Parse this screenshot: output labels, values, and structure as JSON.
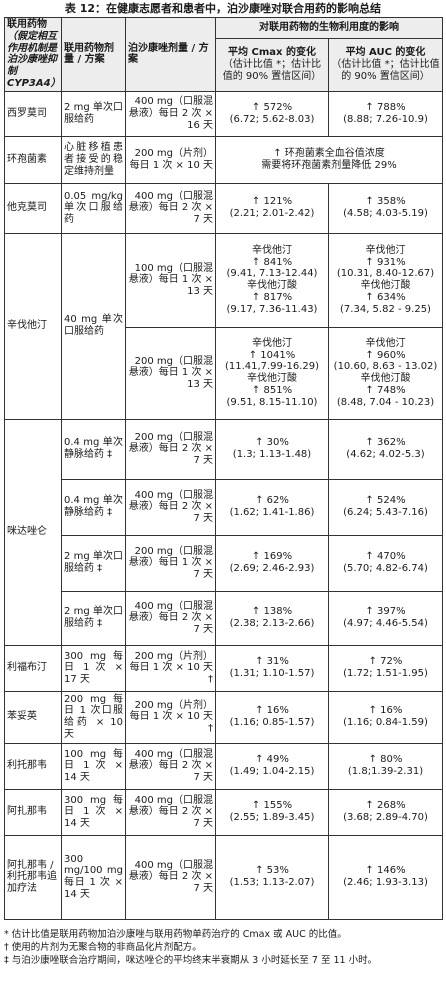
{
  "title": "表 12：在健康志愿者和患者中，泊沙康唑对联合用药的影响总结",
  "headers": {
    "drug_main": "联用药物",
    "drug_sub": "（假定相互作用机制是泊沙康唑抑制CYP3A4）",
    "coadmin_dose": "联用药物剂量 / 方案",
    "posa_dose": "泊沙康唑剂量 / 方案",
    "effect_span": "对联用药物的生物利用度的影响",
    "cmax_title": "平均 Cmax 的变化",
    "cmax_note": "（估计比值 *；估计比值的 90% 置信区间）",
    "auc_title": "平均 AUC 的变化",
    "auc_note": "（估计比值 *；估计比值的 90% 置信区间）"
  },
  "rows": {
    "cimetidine": {
      "drug": "西罗莫司",
      "dose": "2 mg 单次口服给药",
      "posa": "400 mg（口服混悬液）每日 2 次 × 16 天",
      "cmax_change": "↑ 572%",
      "cmax_ci": "(6.72; 5.62-8.03)",
      "auc_change": "↑ 788%",
      "auc_ci": "(8.88; 7.26-10.9)"
    },
    "cyclosporine": {
      "drug": "环孢菌素",
      "dose": "心脏移植患者接受的稳定维持剂量",
      "posa": "200 mg（片剂）每日 1 次 × 10 天",
      "merged_line1": "↑ 环孢菌素全血谷值浓度",
      "merged_line2": "需要将环孢菌素剂量降低 29%"
    },
    "tacrolimus": {
      "drug": "他克莫司",
      "dose": "0.05 mg/kg 单次口服给药",
      "posa": "400 mg（口服混悬液）每日 2 次 × 7 天",
      "cmax_change": "↑ 121%",
      "cmax_ci": "(2.21; 2.01-2.42)",
      "auc_change": "↑ 358%",
      "auc_ci": "(4.58; 4.03-5.19)"
    },
    "simvastatin": {
      "drug": "辛伐他汀",
      "dose": "40 mg 单次口服给药",
      "a": {
        "posa": "100 mg（口服混悬液）每日 1 次 × 13 天",
        "cmax_sim_label": "辛伐他汀",
        "cmax_sim_change": "↑ 841%",
        "cmax_sim_ci": "(9.41, 7.13-12.44)",
        "cmax_acid_label": "辛伐他汀酸",
        "cmax_acid_change": "↑ 817%",
        "cmax_acid_ci": "(9.17, 7.36-11.43)",
        "auc_sim_label": "辛伐他汀",
        "auc_sim_change": "↑ 931%",
        "auc_sim_ci": "(10.31, 8.40-12.67)",
        "auc_acid_label": "辛伐他汀酸",
        "auc_acid_change": "↑ 634%",
        "auc_acid_ci": "(7.34, 5.82 - 9.25)"
      },
      "b": {
        "posa": "200 mg（口服混悬液）每日 1 次 × 13 天",
        "cmax_sim_label": "辛伐他汀",
        "cmax_sim_change": "↑ 1041%",
        "cmax_sim_ci": "(11.41,7.99-16.29)",
        "cmax_acid_label": "辛伐他汀酸",
        "cmax_acid_change": "↑ 851%",
        "cmax_acid_ci": "(9.51, 8.15-11.10)",
        "auc_sim_label": "辛伐他汀",
        "auc_sim_change": "↑ 960%",
        "auc_sim_ci": "(10.60, 8.63 - 13.02)",
        "auc_acid_label": "辛伐他汀酸",
        "auc_acid_change": "↑ 748%",
        "auc_acid_ci": "(8.48, 7.04 - 10.23)"
      }
    },
    "midazolam": {
      "drug": "咪达唑仑",
      "sub": [
        {
          "dose": "0.4 mg 单次静脉给药 ‡",
          "posa": "200 mg（口服混悬液）每日 2 次 × 7 天",
          "cmax_change": "↑ 30%",
          "cmax_ci": "(1.3; 1.13-1.48)",
          "auc_change": "↑ 362%",
          "auc_ci": "(4.62; 4.02-5.3)"
        },
        {
          "dose": "0.4 mg 单次静脉给药 ‡",
          "posa": "400 mg（口服混悬液）每日 2 次 × 7 天",
          "cmax_change": "↑ 62%",
          "cmax_ci": "(1.62; 1.41-1.86)",
          "auc_change": "↑ 524%",
          "auc_ci": "(6.24; 5.43-7.16)"
        },
        {
          "dose": "2 mg 单次口服给药 ‡",
          "posa": "200 mg（口服混悬液）每日 1 次 × 7 天",
          "cmax_change": "↑ 169%",
          "cmax_ci": "(2.69; 2.46-2.93)",
          "auc_change": "↑ 470%",
          "auc_ci": "(5.70; 4.82-6.74)"
        },
        {
          "dose": "2 mg 单次口服给药 ‡",
          "posa": "400 mg（口服混悬液）每日 2 次 × 7 天",
          "cmax_change": "↑ 138%",
          "cmax_ci": "(2.38; 2.13-2.66)",
          "auc_change": "↑ 397%",
          "auc_ci": "(4.97; 4.46-5.54)"
        }
      ]
    },
    "rifabutin": {
      "drug": "利福布汀",
      "dose": "300 mg 每日 1 次 × 17 天",
      "posa": "200 mg（片剂）每日 1 次 × 10 天 †",
      "cmax_change": "↑ 31%",
      "cmax_ci": "(1.31; 1.10-1.57)",
      "auc_change": "↑ 72%",
      "auc_ci": "(1.72; 1.51-1.95)"
    },
    "phenytoin": {
      "drug": "苯妥英",
      "dose": "200 mg 每日 1 次口服给药 × 10 天",
      "posa": "200 mg（片剂）每日 1 次 × 10 天 †",
      "cmax_change": "↑ 16%",
      "cmax_ci": "(1.16; 0.85-1.57)",
      "auc_change": "↑ 16%",
      "auc_ci": "(1.16; 0.84-1.59)"
    },
    "ritonavir": {
      "drug": "利托那韦",
      "dose": "100 mg 每日 1 次 × 14 天",
      "posa": "400 mg（口服混悬液）每日 2 次 × 7 天",
      "cmax_change": "↑ 49%",
      "cmax_ci": "(1.49; 1.04-2.15)",
      "auc_change": "↑ 80%",
      "auc_ci": "(1.8;1.39-2.31)"
    },
    "atazanavir": {
      "drug": "阿扎那韦",
      "dose": "300 mg 每日 1 次 × 14 天",
      "posa": "400 mg（口服混悬液）每日 2 次 × 7 天",
      "cmax_change": "↑ 155%",
      "cmax_ci": "(2.55; 1.89-3.45)",
      "auc_change": "↑ 268%",
      "auc_ci": "(3.68; 2.89-4.70)"
    },
    "atazanavir_rtv": {
      "drug": "阿扎那韦 / 利托那韦追加疗法",
      "dose": "300 mg/100 mg 每日 1 次 × 14 天",
      "posa": "400 mg（口服混悬液）每日 2 次 × 7 天",
      "cmax_change": "↑ 53%",
      "cmax_ci": "(1.53; 1.13-2.07)",
      "auc_change": "↑ 146%",
      "auc_ci": "(2.46; 1.93-3.13)"
    }
  },
  "footnotes": [
    "* 估计比值是联用药物加泊沙康唑与联用药物单药治疗的 Cmax 或 AUC 的比值。",
    "† 使用的片剂为无聚合物的非商品化片剂配方。",
    "‡ 与泊沙康唑联合治疗期间，咪达唑仑的平均终末半衰期从 3 小时延长至 7 至 11 小时。"
  ]
}
